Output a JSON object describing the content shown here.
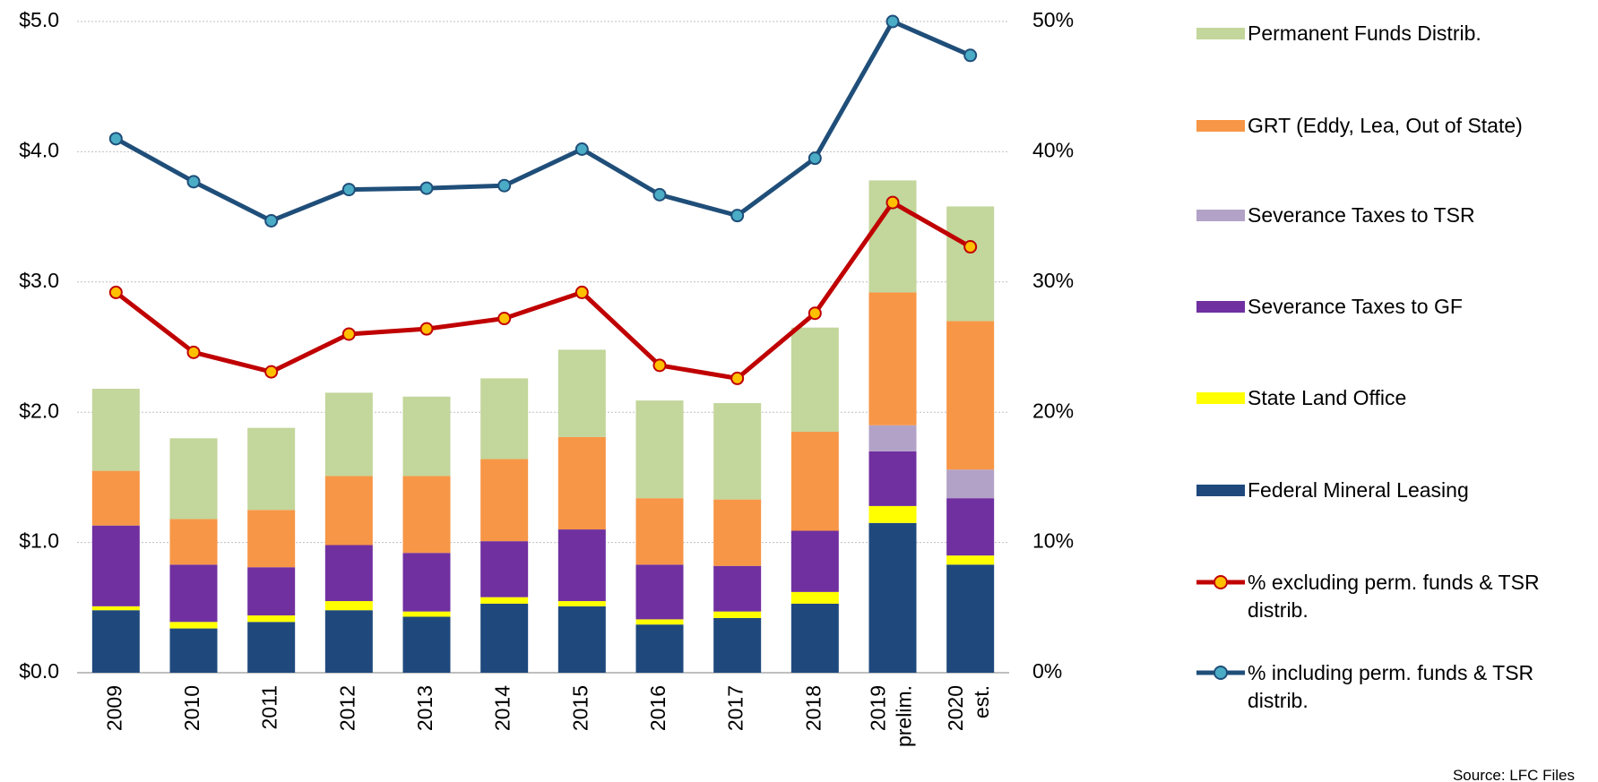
{
  "chart_data": {
    "type": "bar",
    "categories": [
      "2009",
      "2010",
      "2011",
      "2012",
      "2013",
      "2014",
      "2015",
      "2016",
      "2017",
      "2018",
      "2019 prelim.",
      "2020 est."
    ],
    "series": [
      {
        "name": "Federal Mineral Leasing",
        "color": "#1f497d",
        "values": [
          0.48,
          0.34,
          0.39,
          0.48,
          0.43,
          0.53,
          0.51,
          0.37,
          0.42,
          0.53,
          1.15,
          0.83
        ]
      },
      {
        "name": "State Land Office",
        "color": "#ffff00",
        "values": [
          0.03,
          0.05,
          0.05,
          0.07,
          0.04,
          0.05,
          0.04,
          0.04,
          0.05,
          0.09,
          0.13,
          0.07
        ]
      },
      {
        "name": "Severance Taxes to GF",
        "color": "#7030a0",
        "values": [
          0.62,
          0.44,
          0.37,
          0.43,
          0.45,
          0.43,
          0.55,
          0.42,
          0.35,
          0.47,
          0.42,
          0.44
        ]
      },
      {
        "name": "Severance Taxes to TSR",
        "color": "#b3a2c7",
        "values": [
          0,
          0,
          0,
          0,
          0,
          0,
          0,
          0,
          0,
          0,
          0.2,
          0.22
        ]
      },
      {
        "name": "GRT (Eddy, Lea, Out of State)",
        "color": "#f79646",
        "values": [
          0.42,
          0.35,
          0.44,
          0.53,
          0.59,
          0.63,
          0.71,
          0.51,
          0.51,
          0.76,
          1.02,
          1.14
        ]
      },
      {
        "name": "Permanent Funds Distrib.",
        "color": "#c3d69b",
        "values": [
          0.63,
          0.62,
          0.63,
          0.64,
          0.61,
          0.62,
          0.67,
          0.75,
          0.74,
          0.8,
          0.86,
          0.88
        ]
      },
      {
        "name": "% excluding perm. funds & TSR distrib.",
        "type": "line",
        "axis": "y2",
        "color": "#c00000",
        "marker_color": "#ffc000",
        "values": [
          29.2,
          24.6,
          23.1,
          26.0,
          26.4,
          27.2,
          29.2,
          23.6,
          22.6,
          27.6,
          36.1,
          32.7
        ]
      },
      {
        "name": "% including perm. funds & TSR distrib.",
        "type": "line",
        "axis": "y2",
        "color": "#1f4e79",
        "marker_color": "#4bacc6",
        "values": [
          41.0,
          37.7,
          34.7,
          37.1,
          37.2,
          37.4,
          40.2,
          36.7,
          35.1,
          39.5,
          50.0,
          47.4
        ]
      }
    ],
    "ylim": [
      0,
      5
    ],
    "y2lim": [
      0,
      50
    ],
    "yticks": [
      {
        "value": 0,
        "label": "$0.0"
      },
      {
        "value": 1,
        "label": "$1.0"
      },
      {
        "value": 2,
        "label": "$2.0"
      },
      {
        "value": 3,
        "label": "$3.0"
      },
      {
        "value": 4,
        "label": "$4.0"
      },
      {
        "value": 5,
        "label": "$5.0"
      }
    ],
    "y2ticks": [
      {
        "value": 0,
        "label": "0%"
      },
      {
        "value": 10,
        "label": "10%"
      },
      {
        "value": 20,
        "label": "20%"
      },
      {
        "value": 30,
        "label": "30%"
      },
      {
        "value": 40,
        "label": "40%"
      },
      {
        "value": 50,
        "label": "50%"
      }
    ],
    "grid": true,
    "stacked": true,
    "legend": "right",
    "source": "Source: LFC Files"
  }
}
